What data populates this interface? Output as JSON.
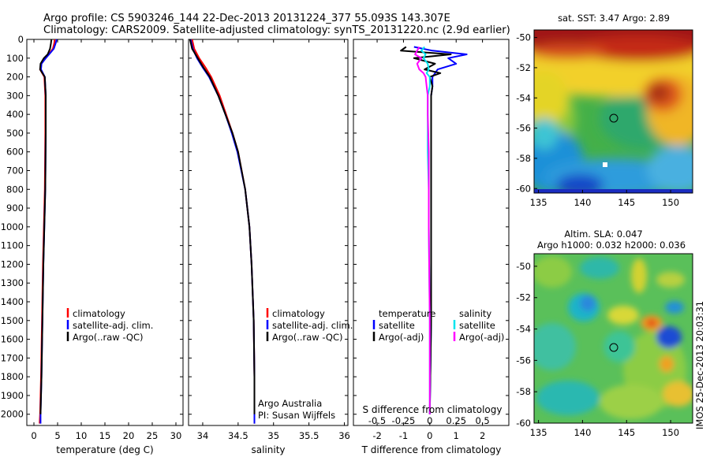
{
  "header": {
    "line1": "Argo profile: CS 5903246_144 22-Dec-2013 20131224_377 55.093S 143.307E",
    "line2": "Climatology: CARS2009. Satellite-adjusted climatology: synTS_20131220.nc (2.9d earlier)"
  },
  "colors": {
    "climatology": "#ff0000",
    "satellite": "#0000ff",
    "argo": "#000000",
    "salinity_satellite": "#00e5ee",
    "salinity_argo": "#ff00ff"
  },
  "legend": {
    "climatology": "climatology",
    "satellite_clim": "satellite-adj. clim.",
    "argo_raw": "Argo(..raw -QC)",
    "temperature_head": "temperature",
    "salinity_head": "salinity",
    "satellite": "satellite",
    "argo_adj": "Argo(-adj)"
  },
  "credits": {
    "line1": "Argo Australia",
    "line2": "PI: Susan Wijffels"
  },
  "timestamp": "IMOS 25-Dec-2013 20:03:31",
  "chart_data": [
    {
      "type": "line",
      "xlabel": "temperature (deg C)",
      "ylabel": "",
      "xlim": [
        -1.5,
        31.5
      ],
      "ylim": [
        2060,
        0
      ],
      "x_ticks": [
        0,
        5,
        10,
        15,
        20,
        25,
        30
      ],
      "y_ticks": [
        0,
        100,
        200,
        300,
        400,
        500,
        600,
        700,
        800,
        900,
        1000,
        1100,
        1200,
        1300,
        1400,
        1500,
        1600,
        1700,
        1800,
        1900,
        2000
      ],
      "depth": [
        0,
        20,
        50,
        80,
        100,
        130,
        160,
        200,
        300,
        500,
        800,
        1000,
        1200,
        1500,
        1800,
        2000,
        2050
      ],
      "series": [
        {
          "name": "climatology",
          "values": [
            4.4,
            4.3,
            4.0,
            3.1,
            2.5,
            1.5,
            1.3,
            2.2,
            2.4,
            2.4,
            2.3,
            2.1,
            1.9,
            1.7,
            1.5,
            1.3,
            1.2
          ]
        },
        {
          "name": "satellite-adj. clim.",
          "values": [
            4.8,
            4.6,
            4.2,
            3.2,
            2.5,
            1.6,
            1.5,
            2.3,
            2.5,
            2.5,
            2.4,
            2.2,
            2.0,
            1.8,
            1.6,
            1.4,
            1.4
          ]
        },
        {
          "name": "Argo(..raw -QC)",
          "values": [
            3.7,
            3.6,
            3.4,
            2.9,
            2.1,
            1.4,
            1.3,
            2.3,
            2.5,
            2.5,
            2.4,
            2.2,
            2.0,
            1.8,
            1.6,
            1.4,
            null
          ]
        }
      ]
    },
    {
      "type": "line",
      "xlabel": "salinity",
      "ylabel": "",
      "xlim": [
        33.8,
        36.05
      ],
      "ylim": [
        2060,
        0
      ],
      "x_ticks": [
        34,
        34.5,
        35,
        35.5,
        36
      ],
      "depth": [
        0,
        50,
        100,
        150,
        200,
        300,
        400,
        500,
        600,
        800,
        1000,
        1200,
        1500,
        1800,
        2000,
        2050
      ],
      "series": [
        {
          "name": "climatology",
          "values": [
            33.85,
            33.88,
            33.95,
            34.04,
            34.12,
            34.24,
            34.33,
            34.42,
            34.5,
            34.6,
            34.66,
            34.69,
            34.72,
            34.73,
            34.73,
            34.73
          ]
        },
        {
          "name": "satellite-adj. clim.",
          "values": [
            33.83,
            33.86,
            33.92,
            34.0,
            34.09,
            34.22,
            34.32,
            34.41,
            34.49,
            34.6,
            34.66,
            34.69,
            34.72,
            34.73,
            34.73,
            34.73
          ]
        },
        {
          "name": "Argo(..raw -QC)",
          "values": [
            33.82,
            33.85,
            33.93,
            34.01,
            34.1,
            34.22,
            34.32,
            34.42,
            34.5,
            34.6,
            34.66,
            34.69,
            34.72,
            34.73,
            34.73,
            null
          ]
        }
      ]
    },
    {
      "type": "line",
      "title_bottom": "S difference from climatology",
      "xlabel": "T difference from climatology",
      "xlim": [
        -2.9,
        3.0
      ],
      "ylim": [
        2060,
        0
      ],
      "x_ticks": [
        -2,
        -1,
        0,
        1,
        2
      ],
      "s_ticks": [
        "-0.5",
        "-0.25",
        "0",
        "0.25",
        "0.5"
      ],
      "s_tick_values": [
        -0.5,
        -0.25,
        0,
        0.25,
        0.5
      ],
      "depth": [
        40,
        60,
        80,
        100,
        130,
        160,
        180,
        200,
        250,
        300,
        400,
        600,
        800,
        1000,
        1500,
        2000
      ],
      "series": [
        {
          "name": "temperature satellite",
          "values": [
            -0.6,
            0.1,
            1.4,
            0.7,
            1.0,
            0.3,
            0.2,
            0.1,
            0.1,
            0.05,
            0.05,
            0.05,
            0.05,
            0.05,
            0.05,
            0.0
          ]
        },
        {
          "name": "temperature Argo(-adj)",
          "values": [
            -0.9,
            -1.1,
            0.8,
            -0.6,
            0.2,
            -0.2,
            0.4,
            0.0,
            0.1,
            0.05,
            0.05,
            0.05,
            0.05,
            0.05,
            0.05,
            0.0
          ]
        },
        {
          "name": "salinity satellite",
          "values": [
            -0.05,
            -0.08,
            -0.04,
            -0.06,
            -0.02,
            -0.01,
            -0.03,
            0.0,
            0.0,
            -0.02,
            -0.02,
            -0.02,
            -0.01,
            -0.01,
            0.0,
            0.0
          ]
        },
        {
          "name": "salinity Argo(-adj)",
          "values": [
            -0.1,
            -0.12,
            -0.14,
            -0.08,
            -0.12,
            -0.1,
            -0.06,
            -0.04,
            -0.03,
            -0.02,
            -0.02,
            -0.01,
            -0.01,
            -0.01,
            0.0,
            0.0
          ]
        }
      ]
    },
    {
      "type": "heatmap",
      "title": "sat. SST: 3.47 Argo: 2.89",
      "xlim": [
        134.5,
        152.5
      ],
      "ylim": [
        -60.3,
        -49.5
      ],
      "x_ticks": [
        135,
        140,
        145,
        150
      ],
      "y_ticks": [
        -50,
        -52,
        -54,
        -56,
        -58,
        -60
      ],
      "marker": {
        "lon": 143.3,
        "lat": -55.1
      }
    },
    {
      "type": "heatmap",
      "title": "Altim. SLA: 0.047",
      "subtitle": "Argo h1000: 0.032 h2000: 0.036",
      "xlim": [
        134.5,
        152.5
      ],
      "ylim": [
        -60.0,
        -49.2
      ],
      "x_ticks": [
        135,
        140,
        145,
        150
      ],
      "y_ticks": [
        -50,
        -52,
        -54,
        -56,
        -58,
        -60
      ],
      "marker": {
        "lon": 143.3,
        "lat": -55.1
      }
    }
  ]
}
